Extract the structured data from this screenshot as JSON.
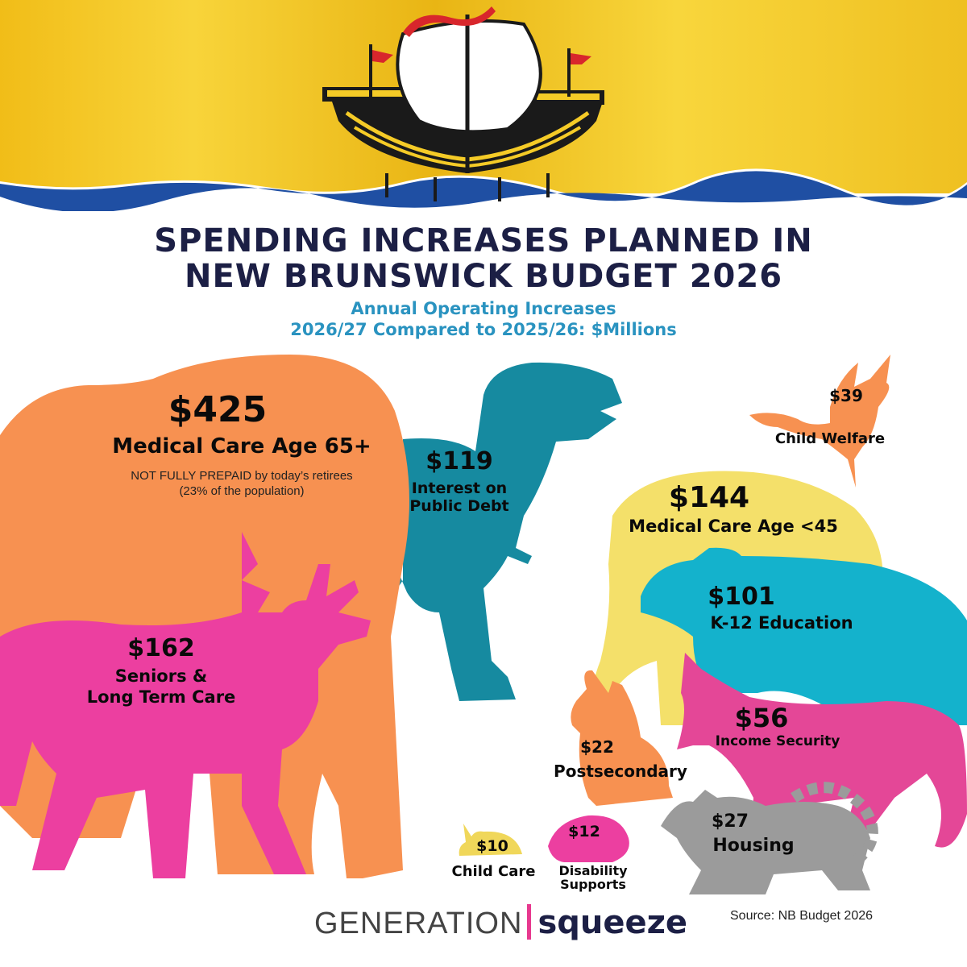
{
  "title_line1": "SPENDING INCREASES PLANNED IN",
  "title_line2": "NEW BRUNSWICK BUDGET 2026",
  "subtitle_line1": "Annual Operating Increases",
  "subtitle_line2": "2026/27 Compared to 2025/26: $Millions",
  "chart_data": {
    "type": "pictogram",
    "unit": "$Millions",
    "categories": [
      "Medical Care Age 65+",
      "Seniors & Long Term Care",
      "Medical Care Age <45",
      "Interest on Public Debt",
      "K-12 Education",
      "Income Security",
      "Child Welfare",
      "Housing",
      "Postsecondary",
      "Disability Supports",
      "Child Care"
    ],
    "values": [
      425,
      162,
      144,
      119,
      101,
      56,
      39,
      27,
      22,
      12,
      10
    ],
    "colors": [
      "#f79151",
      "#ec3fa0",
      "#f4e06a",
      "#168aa0",
      "#14b2cc",
      "#e44797",
      "#f79151",
      "#9b9b9b",
      "#f79151",
      "#ec3fa0",
      "#f0d75a"
    ],
    "items": [
      {
        "value_label": "$425",
        "name": "Medical Care Age 65+",
        "animal": "elephant",
        "color": "#f79151",
        "note_line1": "NOT FULLY PREPAID by today’s retirees",
        "note_line2": "(23% of the population)"
      },
      {
        "value_label": "$162",
        "name_line1": "Seniors &",
        "name_line2": "Long Term Care",
        "animal": "moose",
        "color": "#ec3fa0"
      },
      {
        "value_label": "$144",
        "name": "Medical Care Age <45",
        "animal": "elephant",
        "color": "#f4e06a"
      },
      {
        "value_label": "$119",
        "name_line1": "Interest on",
        "name_line2": "Public Debt",
        "animal": "t-rex",
        "color": "#168aa0"
      },
      {
        "value_label": "$101",
        "name": "K-12 Education",
        "animal": "bear",
        "color": "#14b2cc"
      },
      {
        "value_label": "$56",
        "name": "Income Security",
        "animal": "fox",
        "color": "#e44797"
      },
      {
        "value_label": "$39",
        "name": "Child Welfare",
        "animal": "goose",
        "color": "#f79151"
      },
      {
        "value_label": "$27",
        "name": "Housing",
        "animal": "raccoon",
        "color": "#9b9b9b"
      },
      {
        "value_label": "$22",
        "name": "Postsecondary",
        "animal": "rabbit",
        "color": "#f79151"
      },
      {
        "value_label": "$12",
        "name_line1": "Disability",
        "name_line2": "Supports",
        "animal": "hedgehog",
        "color": "#ec3fa0"
      },
      {
        "value_label": "$10",
        "name": "Child Care",
        "animal": "snail",
        "color": "#f0d75a"
      }
    ]
  },
  "brand": {
    "part1": "GENERATION",
    "part2": "squeeze"
  },
  "source": "Source: NB Budget 2026",
  "flag_colors": {
    "yellow": "#f5cb27",
    "blue": "#1f4fa3",
    "red": "#d8262c",
    "black": "#1a1a1a"
  }
}
